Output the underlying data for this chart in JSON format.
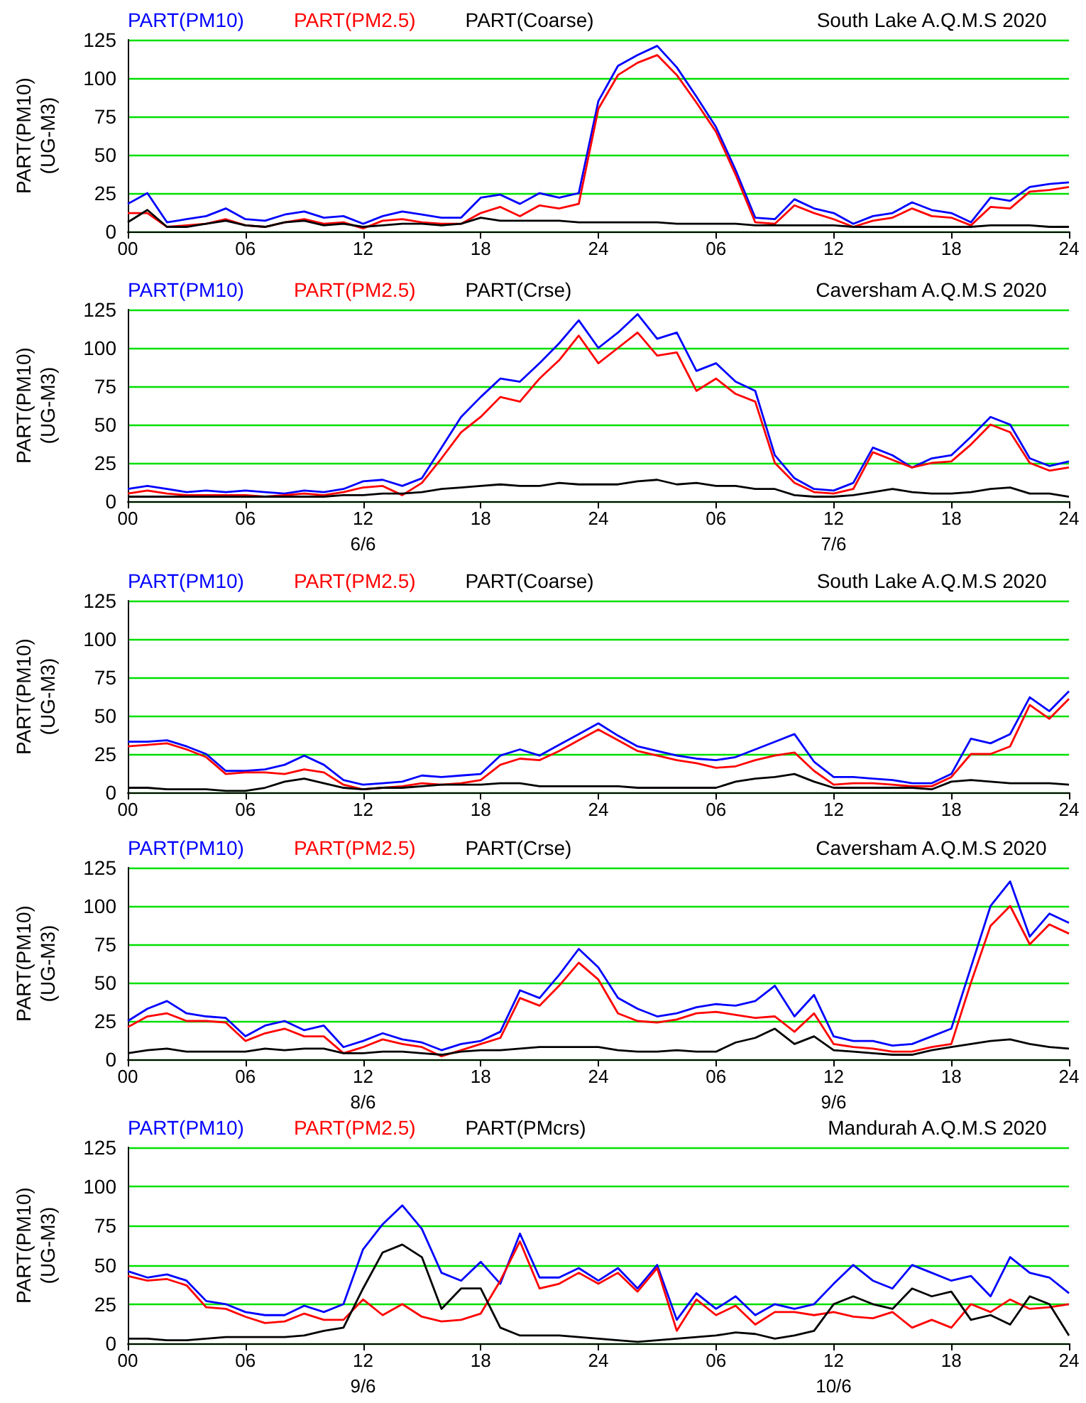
{
  "chart_data": [
    {
      "type": "line",
      "title": "South Lake A.Q.M.S 2020",
      "ylabel": "PART(PM10)\n(UG-M3)",
      "x": [
        "2020-06-06T00:00",
        "2020-06-06T01:00",
        "2020-06-06T02:00",
        "2020-06-06T03:00",
        "2020-06-06T04:00",
        "2020-06-06T05:00",
        "2020-06-06T06:00",
        "2020-06-06T07:00",
        "2020-06-06T08:00",
        "2020-06-06T09:00",
        "2020-06-06T10:00",
        "2020-06-06T11:00",
        "2020-06-06T12:00",
        "2020-06-06T13:00",
        "2020-06-06T14:00",
        "2020-06-06T15:00",
        "2020-06-06T16:00",
        "2020-06-06T17:00",
        "2020-06-06T18:00",
        "2020-06-06T19:00",
        "2020-06-06T20:00",
        "2020-06-06T21:00",
        "2020-06-06T22:00",
        "2020-06-06T23:00",
        "2020-06-07T00:00",
        "2020-06-07T01:00",
        "2020-06-07T02:00",
        "2020-06-07T03:00",
        "2020-06-07T04:00",
        "2020-06-07T05:00",
        "2020-06-07T06:00",
        "2020-06-07T07:00",
        "2020-06-07T08:00",
        "2020-06-07T09:00",
        "2020-06-07T10:00",
        "2020-06-07T11:00",
        "2020-06-07T12:00",
        "2020-06-07T13:00",
        "2020-06-07T14:00",
        "2020-06-07T15:00",
        "2020-06-07T16:00",
        "2020-06-07T17:00",
        "2020-06-07T18:00",
        "2020-06-07T19:00",
        "2020-06-07T20:00",
        "2020-06-07T21:00",
        "2020-06-07T22:00",
        "2020-06-07T23:00",
        "2020-06-08T00:00"
      ],
      "xlim": [
        "2020-06-06T00:00",
        "2020-06-08T00:00"
      ],
      "xticks": [
        {
          "value": "2020-06-06T00:00",
          "label": "00"
        },
        {
          "value": "2020-06-06T06:00",
          "label": "06"
        },
        {
          "value": "2020-06-06T12:00",
          "label": "12"
        },
        {
          "value": "2020-06-06T18:00",
          "label": "18"
        },
        {
          "value": "2020-06-07T00:00",
          "label": "24"
        },
        {
          "value": "2020-06-07T06:00",
          "label": "06"
        },
        {
          "value": "2020-06-07T12:00",
          "label": "12"
        },
        {
          "value": "2020-06-07T18:00",
          "label": "18"
        },
        {
          "value": "2020-06-08T00:00",
          "label": "24"
        }
      ],
      "ylim": [
        0,
        125
      ],
      "yticks": [
        0,
        25,
        50,
        75,
        100,
        125
      ],
      "grid": "y",
      "legend": "top left",
      "marker": "none",
      "series": [
        {
          "name": "PART(PM10)",
          "color": "#0000ff",
          "values": [
            18,
            25,
            6,
            8,
            10,
            15,
            8,
            7,
            11,
            13,
            9,
            10,
            5,
            10,
            13,
            11,
            9,
            9,
            22,
            24,
            18,
            25,
            22,
            25,
            85,
            108,
            115,
            121,
            107,
            88,
            68,
            40,
            9,
            8,
            21,
            15,
            12,
            5,
            10,
            12,
            19,
            14,
            12,
            6,
            22,
            20,
            29,
            31,
            32
          ]
        },
        {
          "name": "PART(PM2.5)",
          "color": "#ff0000",
          "values": [
            12,
            12,
            3,
            4,
            5,
            8,
            4,
            3,
            6,
            8,
            5,
            6,
            2,
            7,
            8,
            6,
            5,
            5,
            12,
            16,
            10,
            17,
            15,
            18,
            80,
            102,
            110,
            115,
            102,
            84,
            65,
            37,
            6,
            5,
            17,
            12,
            8,
            3,
            7,
            9,
            15,
            10,
            9,
            4,
            16,
            15,
            26,
            27,
            29
          ]
        },
        {
          "name": "PART(Coarse)",
          "color": "#000000",
          "values": [
            6,
            14,
            3,
            3,
            5,
            7,
            4,
            3,
            6,
            7,
            4,
            5,
            3,
            4,
            5,
            5,
            4,
            5,
            9,
            7,
            7,
            7,
            7,
            6,
            6,
            6,
            6,
            6,
            5,
            5,
            5,
            5,
            4,
            4,
            4,
            4,
            4,
            3,
            3,
            3,
            3,
            3,
            3,
            3,
            4,
            4,
            4,
            3,
            3
          ]
        }
      ]
    },
    {
      "type": "line",
      "title": "Caversham A.Q.M.S 2020",
      "ylabel": "PART(PM10)\n(UG-M3)",
      "x": [
        "2020-06-06T00:00",
        "2020-06-06T01:00",
        "2020-06-06T02:00",
        "2020-06-06T03:00",
        "2020-06-06T04:00",
        "2020-06-06T05:00",
        "2020-06-06T06:00",
        "2020-06-06T07:00",
        "2020-06-06T08:00",
        "2020-06-06T09:00",
        "2020-06-06T10:00",
        "2020-06-06T11:00",
        "2020-06-06T12:00",
        "2020-06-06T13:00",
        "2020-06-06T14:00",
        "2020-06-06T15:00",
        "2020-06-06T16:00",
        "2020-06-06T17:00",
        "2020-06-06T18:00",
        "2020-06-06T19:00",
        "2020-06-06T20:00",
        "2020-06-06T21:00",
        "2020-06-06T22:00",
        "2020-06-06T23:00",
        "2020-06-07T00:00",
        "2020-06-07T01:00",
        "2020-06-07T02:00",
        "2020-06-07T03:00",
        "2020-06-07T04:00",
        "2020-06-07T05:00",
        "2020-06-07T06:00",
        "2020-06-07T07:00",
        "2020-06-07T08:00",
        "2020-06-07T09:00",
        "2020-06-07T10:00",
        "2020-06-07T11:00",
        "2020-06-07T12:00",
        "2020-06-07T13:00",
        "2020-06-07T14:00",
        "2020-06-07T15:00",
        "2020-06-07T16:00",
        "2020-06-07T17:00",
        "2020-06-07T18:00",
        "2020-06-07T19:00",
        "2020-06-07T20:00",
        "2020-06-07T21:00",
        "2020-06-07T22:00",
        "2020-06-07T23:00",
        "2020-06-08T00:00"
      ],
      "xlim": [
        "2020-06-06T00:00",
        "2020-06-08T00:00"
      ],
      "xticks": [
        {
          "value": "2020-06-06T00:00",
          "label": "00"
        },
        {
          "value": "2020-06-06T06:00",
          "label": "06"
        },
        {
          "value": "2020-06-06T12:00",
          "label": "12\n6/6"
        },
        {
          "value": "2020-06-06T18:00",
          "label": "18"
        },
        {
          "value": "2020-06-07T00:00",
          "label": "24"
        },
        {
          "value": "2020-06-07T06:00",
          "label": "06"
        },
        {
          "value": "2020-06-07T12:00",
          "label": "12\n7/6"
        },
        {
          "value": "2020-06-07T18:00",
          "label": "18"
        },
        {
          "value": "2020-06-08T00:00",
          "label": "24"
        }
      ],
      "ylim": [
        0,
        125
      ],
      "yticks": [
        0,
        25,
        50,
        75,
        100,
        125
      ],
      "grid": "y",
      "legend": "top left",
      "marker": "none",
      "series": [
        {
          "name": "PART(PM10)",
          "color": "#0000ff",
          "values": [
            8,
            10,
            8,
            6,
            7,
            6,
            7,
            6,
            5,
            7,
            6,
            8,
            13,
            14,
            10,
            15,
            35,
            55,
            68,
            80,
            78,
            90,
            103,
            118,
            100,
            110,
            122,
            106,
            110,
            85,
            90,
            78,
            72,
            30,
            15,
            8,
            7,
            12,
            35,
            30,
            22,
            28,
            30,
            42,
            55,
            50,
            28,
            23,
            26
          ]
        },
        {
          "name": "PART(PM2.5)",
          "color": "#ff0000",
          "values": [
            5,
            7,
            5,
            4,
            4,
            4,
            4,
            3,
            4,
            5,
            4,
            6,
            9,
            10,
            4,
            12,
            28,
            45,
            55,
            68,
            65,
            80,
            92,
            108,
            90,
            100,
            110,
            95,
            97,
            72,
            80,
            70,
            65,
            25,
            12,
            6,
            5,
            8,
            32,
            27,
            22,
            25,
            26,
            37,
            50,
            45,
            25,
            20,
            22
          ]
        },
        {
          "name": "PART(Crse)",
          "color": "#000000",
          "values": [
            3,
            3,
            3,
            3,
            3,
            3,
            3,
            3,
            3,
            3,
            3,
            4,
            4,
            5,
            5,
            6,
            8,
            9,
            10,
            11,
            10,
            10,
            12,
            11,
            11,
            11,
            13,
            14,
            11,
            12,
            10,
            10,
            8,
            8,
            4,
            3,
            3,
            4,
            6,
            8,
            6,
            5,
            5,
            6,
            8,
            9,
            5,
            5,
            3
          ]
        }
      ]
    },
    {
      "type": "line",
      "title": "South Lake A.Q.M.S 2020",
      "ylabel": "PART(PM10)\n(UG-M3)",
      "x": [
        "2020-06-08T00:00",
        "2020-06-08T01:00",
        "2020-06-08T02:00",
        "2020-06-08T03:00",
        "2020-06-08T04:00",
        "2020-06-08T05:00",
        "2020-06-08T06:00",
        "2020-06-08T07:00",
        "2020-06-08T08:00",
        "2020-06-08T09:00",
        "2020-06-08T10:00",
        "2020-06-08T11:00",
        "2020-06-08T12:00",
        "2020-06-08T13:00",
        "2020-06-08T14:00",
        "2020-06-08T15:00",
        "2020-06-08T16:00",
        "2020-06-08T17:00",
        "2020-06-08T18:00",
        "2020-06-08T19:00",
        "2020-06-08T20:00",
        "2020-06-08T21:00",
        "2020-06-08T22:00",
        "2020-06-08T23:00",
        "2020-06-09T00:00",
        "2020-06-09T01:00",
        "2020-06-09T02:00",
        "2020-06-09T03:00",
        "2020-06-09T04:00",
        "2020-06-09T05:00",
        "2020-06-09T06:00",
        "2020-06-09T07:00",
        "2020-06-09T08:00",
        "2020-06-09T09:00",
        "2020-06-09T10:00",
        "2020-06-09T11:00",
        "2020-06-09T12:00",
        "2020-06-09T13:00",
        "2020-06-09T14:00",
        "2020-06-09T15:00",
        "2020-06-09T16:00",
        "2020-06-09T17:00",
        "2020-06-09T18:00",
        "2020-06-09T19:00",
        "2020-06-09T20:00",
        "2020-06-09T21:00",
        "2020-06-09T22:00",
        "2020-06-09T23:00",
        "2020-06-10T00:00"
      ],
      "xlim": [
        "2020-06-08T00:00",
        "2020-06-10T00:00"
      ],
      "xticks": [
        {
          "value": "2020-06-08T00:00",
          "label": "00"
        },
        {
          "value": "2020-06-08T06:00",
          "label": "06"
        },
        {
          "value": "2020-06-08T12:00",
          "label": "12"
        },
        {
          "value": "2020-06-08T18:00",
          "label": "18"
        },
        {
          "value": "2020-06-09T00:00",
          "label": "24"
        },
        {
          "value": "2020-06-09T06:00",
          "label": "06"
        },
        {
          "value": "2020-06-09T12:00",
          "label": "12"
        },
        {
          "value": "2020-06-09T18:00",
          "label": "18"
        },
        {
          "value": "2020-06-10T00:00",
          "label": "24"
        }
      ],
      "ylim": [
        0,
        125
      ],
      "yticks": [
        0,
        25,
        50,
        75,
        100,
        125
      ],
      "grid": "y",
      "legend": "top left",
      "marker": "none",
      "series": [
        {
          "name": "PART(PM10)",
          "color": "#0000ff",
          "values": [
            33,
            33,
            34,
            30,
            25,
            14,
            14,
            15,
            18,
            24,
            18,
            8,
            5,
            6,
            7,
            11,
            10,
            11,
            12,
            24,
            28,
            24,
            31,
            38,
            45,
            37,
            30,
            27,
            24,
            22,
            21,
            23,
            28,
            33,
            38,
            20,
            10,
            10,
            9,
            8,
            6,
            6,
            12,
            35,
            32,
            38,
            62,
            53,
            66
          ]
        },
        {
          "name": "PART(PM2.5)",
          "color": "#ff0000",
          "values": [
            30,
            31,
            32,
            28,
            23,
            12,
            13,
            13,
            12,
            15,
            13,
            5,
            2,
            3,
            4,
            6,
            5,
            6,
            8,
            18,
            22,
            21,
            27,
            34,
            41,
            34,
            27,
            24,
            21,
            19,
            16,
            17,
            21,
            24,
            26,
            14,
            5,
            6,
            6,
            5,
            4,
            4,
            10,
            25,
            25,
            30,
            57,
            48,
            61
          ]
        },
        {
          "name": "PART(Coarse)",
          "color": "#000000",
          "values": [
            3,
            3,
            2,
            2,
            2,
            1,
            1,
            3,
            7,
            9,
            6,
            3,
            2,
            3,
            3,
            4,
            5,
            5,
            5,
            6,
            6,
            4,
            4,
            4,
            4,
            4,
            3,
            3,
            3,
            3,
            3,
            7,
            9,
            10,
            12,
            7,
            3,
            3,
            3,
            3,
            3,
            2,
            7,
            8,
            7,
            6,
            6,
            6,
            5
          ]
        }
      ]
    },
    {
      "type": "line",
      "title": "Caversham A.Q.M.S 2020",
      "ylabel": "PART(PM10)\n(UG-M3)",
      "x": [
        "2020-06-08T00:00",
        "2020-06-08T01:00",
        "2020-06-08T02:00",
        "2020-06-08T03:00",
        "2020-06-08T04:00",
        "2020-06-08T05:00",
        "2020-06-08T06:00",
        "2020-06-08T07:00",
        "2020-06-08T08:00",
        "2020-06-08T09:00",
        "2020-06-08T10:00",
        "2020-06-08T11:00",
        "2020-06-08T12:00",
        "2020-06-08T13:00",
        "2020-06-08T14:00",
        "2020-06-08T15:00",
        "2020-06-08T16:00",
        "2020-06-08T17:00",
        "2020-06-08T18:00",
        "2020-06-08T19:00",
        "2020-06-08T20:00",
        "2020-06-08T21:00",
        "2020-06-08T22:00",
        "2020-06-08T23:00",
        "2020-06-09T00:00",
        "2020-06-09T01:00",
        "2020-06-09T02:00",
        "2020-06-09T03:00",
        "2020-06-09T04:00",
        "2020-06-09T05:00",
        "2020-06-09T06:00",
        "2020-06-09T07:00",
        "2020-06-09T08:00",
        "2020-06-09T09:00",
        "2020-06-09T10:00",
        "2020-06-09T11:00",
        "2020-06-09T12:00",
        "2020-06-09T13:00",
        "2020-06-09T14:00",
        "2020-06-09T15:00",
        "2020-06-09T16:00",
        "2020-06-09T17:00",
        "2020-06-09T18:00",
        "2020-06-09T19:00",
        "2020-06-09T20:00",
        "2020-06-09T21:00",
        "2020-06-09T22:00",
        "2020-06-09T23:00",
        "2020-06-10T00:00"
      ],
      "xlim": [
        "2020-06-08T00:00",
        "2020-06-10T00:00"
      ],
      "xticks": [
        {
          "value": "2020-06-08T00:00",
          "label": "00"
        },
        {
          "value": "2020-06-08T06:00",
          "label": "06"
        },
        {
          "value": "2020-06-08T12:00",
          "label": "12\n8/6"
        },
        {
          "value": "2020-06-08T18:00",
          "label": "18"
        },
        {
          "value": "2020-06-09T00:00",
          "label": "24"
        },
        {
          "value": "2020-06-09T06:00",
          "label": "06"
        },
        {
          "value": "2020-06-09T12:00",
          "label": "12\n9/6"
        },
        {
          "value": "2020-06-09T18:00",
          "label": "18"
        },
        {
          "value": "2020-06-10T00:00",
          "label": "24"
        }
      ],
      "ylim": [
        0,
        125
      ],
      "yticks": [
        0,
        25,
        50,
        75,
        100,
        125
      ],
      "grid": "y",
      "legend": "top left",
      "marker": "none",
      "series": [
        {
          "name": "PART(PM10)",
          "color": "#0000ff",
          "values": [
            25,
            33,
            38,
            30,
            28,
            27,
            15,
            22,
            25,
            19,
            22,
            8,
            12,
            17,
            13,
            11,
            6,
            10,
            12,
            18,
            45,
            40,
            55,
            72,
            60,
            40,
            33,
            28,
            30,
            34,
            36,
            35,
            38,
            48,
            28,
            42,
            15,
            12,
            12,
            9,
            10,
            15,
            20,
            60,
            100,
            116,
            80,
            95,
            89
          ]
        },
        {
          "name": "PART(PM2.5)",
          "color": "#ff0000",
          "values": [
            21,
            28,
            30,
            25,
            25,
            24,
            12,
            17,
            20,
            15,
            15,
            4,
            8,
            13,
            10,
            8,
            2,
            6,
            10,
            14,
            40,
            35,
            48,
            63,
            52,
            30,
            25,
            24,
            26,
            30,
            31,
            29,
            27,
            28,
            18,
            30,
            10,
            8,
            7,
            5,
            5,
            8,
            10,
            50,
            87,
            100,
            75,
            88,
            82
          ]
        },
        {
          "name": "PART(Crse)",
          "color": "#000000",
          "values": [
            4,
            6,
            7,
            5,
            5,
            5,
            5,
            7,
            6,
            7,
            7,
            4,
            4,
            5,
            5,
            4,
            3,
            5,
            6,
            6,
            7,
            8,
            8,
            8,
            8,
            6,
            5,
            5,
            6,
            5,
            5,
            11,
            14,
            20,
            10,
            15,
            6,
            5,
            4,
            3,
            3,
            6,
            8,
            10,
            12,
            13,
            10,
            8,
            7
          ]
        }
      ]
    },
    {
      "type": "line",
      "title": "Mandurah A.Q.M.S 2020",
      "ylabel": "PART(PM10)\n(UG-M3)",
      "x": [
        "2020-06-09T00:00",
        "2020-06-09T01:00",
        "2020-06-09T02:00",
        "2020-06-09T03:00",
        "2020-06-09T04:00",
        "2020-06-09T05:00",
        "2020-06-09T06:00",
        "2020-06-09T07:00",
        "2020-06-09T08:00",
        "2020-06-09T09:00",
        "2020-06-09T10:00",
        "2020-06-09T11:00",
        "2020-06-09T12:00",
        "2020-06-09T13:00",
        "2020-06-09T14:00",
        "2020-06-09T15:00",
        "2020-06-09T16:00",
        "2020-06-09T17:00",
        "2020-06-09T18:00",
        "2020-06-09T19:00",
        "2020-06-09T20:00",
        "2020-06-09T21:00",
        "2020-06-09T22:00",
        "2020-06-09T23:00",
        "2020-06-10T00:00",
        "2020-06-10T01:00",
        "2020-06-10T02:00",
        "2020-06-10T03:00",
        "2020-06-10T04:00",
        "2020-06-10T05:00",
        "2020-06-10T06:00",
        "2020-06-10T07:00",
        "2020-06-10T08:00",
        "2020-06-10T09:00",
        "2020-06-10T10:00",
        "2020-06-10T11:00",
        "2020-06-10T12:00",
        "2020-06-10T13:00",
        "2020-06-10T14:00",
        "2020-06-10T15:00",
        "2020-06-10T16:00",
        "2020-06-10T17:00",
        "2020-06-10T18:00",
        "2020-06-10T19:00",
        "2020-06-10T20:00",
        "2020-06-10T21:00",
        "2020-06-10T22:00",
        "2020-06-10T23:00",
        "2020-06-11T00:00"
      ],
      "xlim": [
        "2020-06-09T00:00",
        "2020-06-11T00:00"
      ],
      "xticks": [
        {
          "value": "2020-06-09T00:00",
          "label": "00"
        },
        {
          "value": "2020-06-09T06:00",
          "label": "06"
        },
        {
          "value": "2020-06-09T12:00",
          "label": "12\n9/6"
        },
        {
          "value": "2020-06-09T18:00",
          "label": "18"
        },
        {
          "value": "2020-06-10T00:00",
          "label": "24"
        },
        {
          "value": "2020-06-10T06:00",
          "label": "06"
        },
        {
          "value": "2020-06-10T12:00",
          "label": "12\n10/6"
        },
        {
          "value": "2020-06-10T18:00",
          "label": "18"
        },
        {
          "value": "2020-06-11T00:00",
          "label": "24"
        }
      ],
      "ylim": [
        0,
        125
      ],
      "yticks": [
        0,
        25,
        50,
        75,
        100,
        125
      ],
      "grid": "y",
      "legend": "top left",
      "marker": "none",
      "series": [
        {
          "name": "PART(PM10)",
          "color": "#0000ff",
          "values": [
            46,
            42,
            44,
            40,
            27,
            25,
            20,
            18,
            18,
            24,
            20,
            25,
            60,
            76,
            88,
            73,
            45,
            40,
            52,
            38,
            70,
            42,
            42,
            48,
            40,
            48,
            35,
            50,
            15,
            32,
            22,
            30,
            18,
            25,
            22,
            25,
            38,
            50,
            40,
            35,
            50,
            45,
            40,
            43,
            30,
            55,
            45,
            42,
            32
          ]
        },
        {
          "name": "PART(PM2.5)",
          "color": "#ff0000",
          "values": [
            43,
            40,
            41,
            37,
            23,
            22,
            17,
            13,
            14,
            19,
            15,
            15,
            28,
            18,
            25,
            17,
            14,
            15,
            19,
            40,
            65,
            35,
            38,
            45,
            38,
            45,
            33,
            48,
            8,
            28,
            18,
            24,
            12,
            20,
            20,
            18,
            20,
            17,
            16,
            20,
            10,
            15,
            10,
            25,
            20,
            28,
            22,
            23,
            25
          ]
        },
        {
          "name": "PART(PMcrs)",
          "color": "#000000",
          "values": [
            3,
            3,
            2,
            2,
            3,
            4,
            4,
            4,
            4,
            5,
            8,
            10,
            35,
            58,
            63,
            55,
            22,
            35,
            35,
            10,
            5,
            5,
            5,
            4,
            3,
            2,
            1,
            2,
            3,
            4,
            5,
            7,
            6,
            3,
            5,
            8,
            25,
            30,
            25,
            22,
            35,
            30,
            33,
            15,
            18,
            12,
            30,
            25,
            5
          ]
        }
      ]
    }
  ]
}
